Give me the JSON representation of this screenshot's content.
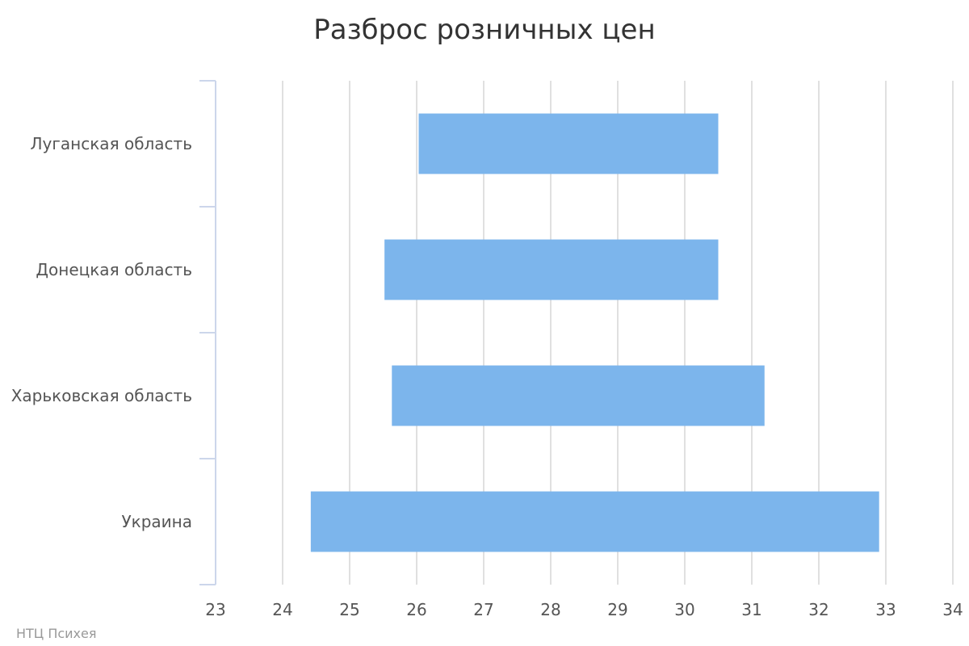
{
  "chart_data": {
    "type": "bar",
    "orientation": "horizontal",
    "title": "Разброс розничных цен",
    "xlabel": "",
    "ylabel": "",
    "categories": [
      "Луганская область",
      "Донецкая область",
      "Харьковская область",
      "Украина"
    ],
    "series": [
      {
        "ranges": [
          [
            26.03,
            30.5
          ],
          [
            25.52,
            30.5
          ],
          [
            25.63,
            31.19
          ],
          [
            24.42,
            32.9
          ]
        ]
      }
    ],
    "xlim": [
      23,
      34
    ],
    "xticks": [
      "23",
      "24",
      "25",
      "26",
      "27",
      "28",
      "29",
      "30",
      "31",
      "32",
      "33",
      "34"
    ],
    "grid": true,
    "legend": "none",
    "colors": {
      "bar": "#7cb5ec",
      "grid": "#e0e0e0",
      "axis": "#ccd6eb",
      "title": "#333333",
      "label": "#555555",
      "credits": "#999999"
    }
  },
  "credits": "НТЦ Психея"
}
